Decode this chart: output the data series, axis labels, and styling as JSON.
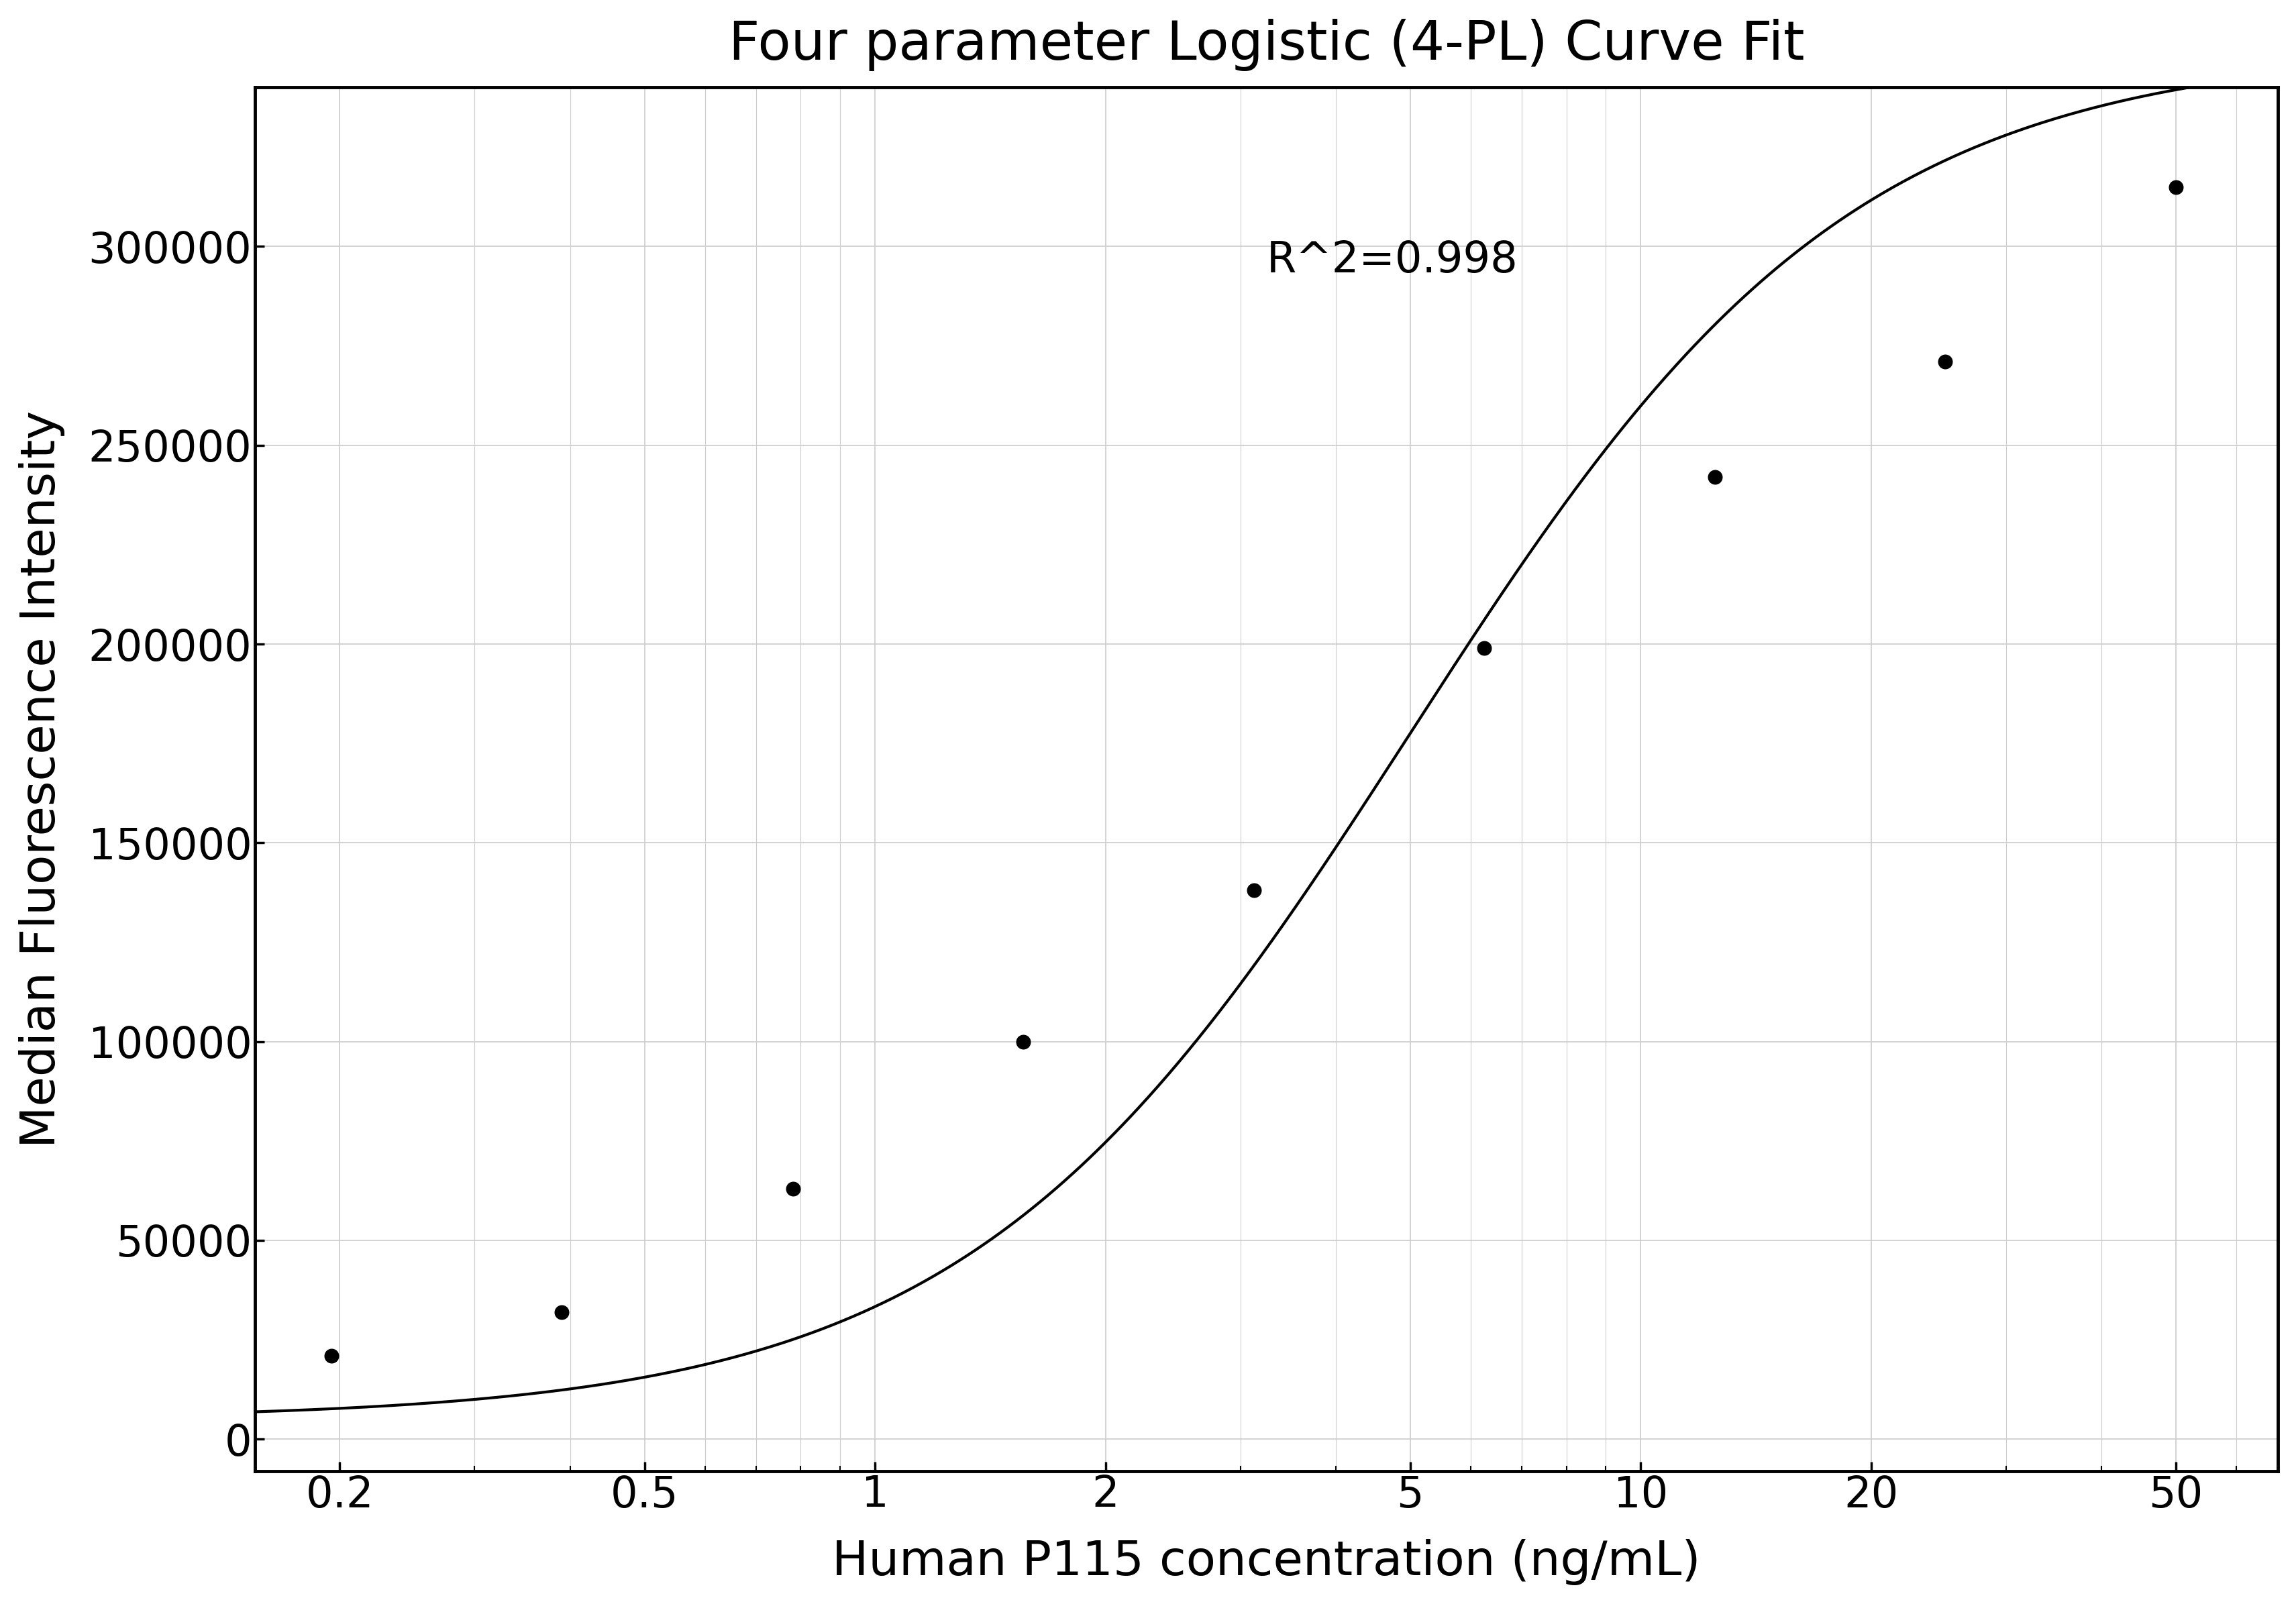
{
  "title": "Four parameter Logistic (4-PL) Curve Fit",
  "xlabel": "Human P115 concentration (ng/mL)",
  "ylabel": "Median Fluorescence Intensity",
  "r_squared": "R^2=0.998",
  "data_x": [
    0.195,
    0.39,
    0.781,
    1.5625,
    3.125,
    6.25,
    12.5,
    25,
    50
  ],
  "data_y": [
    21000,
    32000,
    63000,
    100000,
    138000,
    199000,
    242000,
    271000,
    315000
  ],
  "xticks": [
    0.2,
    0.5,
    1,
    2,
    5,
    10,
    20,
    50
  ],
  "xtick_labels": [
    "0.2",
    "0.5",
    "1",
    "2",
    "5",
    "10",
    "20",
    "50"
  ],
  "yticks": [
    0,
    50000,
    100000,
    150000,
    200000,
    250000,
    300000
  ],
  "ytick_labels": [
    "0",
    "50000",
    "100000",
    "150000",
    "200000",
    "250000",
    "300000"
  ],
  "ylim": [
    -8000,
    340000
  ],
  "xlim_log": [
    0.155,
    68
  ],
  "background_color": "#ffffff",
  "grid_color": "#cccccc",
  "line_color": "#000000",
  "dot_color": "#000000",
  "dot_size": 220,
  "title_fontsize": 58,
  "label_fontsize": 52,
  "tick_fontsize": 46,
  "annotation_fontsize": 46,
  "linewidth": 3.0,
  "spine_linewidth": 3.5
}
